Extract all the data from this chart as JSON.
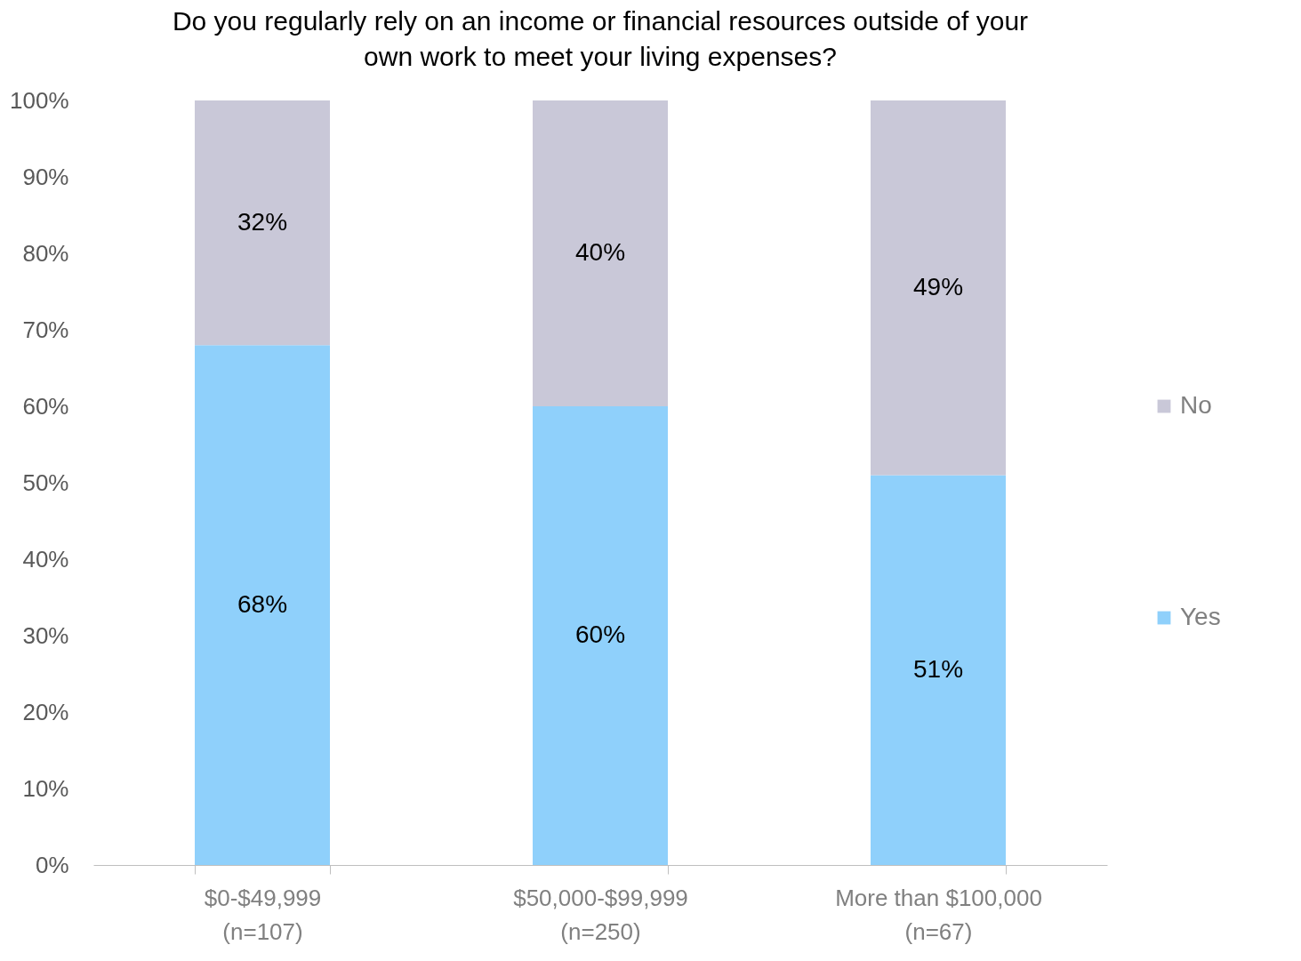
{
  "chart_data": {
    "type": "bar",
    "title": "Do you regularly rely on an income or financial resources outside of your own work to meet your living expenses?",
    "categories": [
      "$0-$49,999\n(n=107)",
      "$50,000-$99,999\n(n=250)",
      "More than $100,000\n(n=67)"
    ],
    "stacked": true,
    "series": [
      {
        "name": "Yes",
        "color": "#8fd0fb",
        "values": [
          68,
          60,
          51
        ],
        "value_labels": [
          "68%",
          "60%",
          "51%"
        ]
      },
      {
        "name": "No",
        "color": "#c9c8d8",
        "values": [
          32,
          40,
          49
        ],
        "value_labels": [
          "32%",
          "40%",
          "49%"
        ]
      }
    ],
    "ylim": [
      0,
      100
    ],
    "yticks": [
      {
        "value": 0,
        "label": "0%"
      },
      {
        "value": 10,
        "label": "10%"
      },
      {
        "value": 20,
        "label": "20%"
      },
      {
        "value": 30,
        "label": "30%"
      },
      {
        "value": 40,
        "label": "40%"
      },
      {
        "value": 50,
        "label": "50%"
      },
      {
        "value": 60,
        "label": "60%"
      },
      {
        "value": 70,
        "label": "70%"
      },
      {
        "value": 80,
        "label": "80%"
      },
      {
        "value": 90,
        "label": "90%"
      },
      {
        "value": 100,
        "label": "100%"
      }
    ],
    "grid": false,
    "legend": "right"
  }
}
